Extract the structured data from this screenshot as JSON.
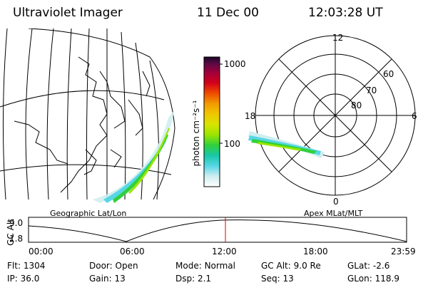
{
  "header": {
    "instrument": "Ultraviolet Imager",
    "date": "11 Dec 00",
    "time": "12:03:28 UT"
  },
  "geo_panel": {
    "caption": "Geographic Lat/Lon"
  },
  "colorbar": {
    "unit_label": "photon cm⁻²s⁻¹",
    "ticks": [
      "1000",
      "100"
    ],
    "ticks_values": [
      1000,
      100
    ],
    "scale": "log",
    "colors": [
      "#ffffff",
      "#cfeef0",
      "#57d6e6",
      "#19c7a8",
      "#2fd13b",
      "#9be500",
      "#d7e500",
      "#f1c700",
      "#f39a00",
      "#ee4b00",
      "#d4001a",
      "#a0003a",
      "#5a0a44",
      "#1a0526"
    ]
  },
  "polar_panel": {
    "caption": "Apex MLat/MLT",
    "mlt_labels": [
      "12",
      "18",
      "6",
      "0"
    ],
    "lat_labels": [
      "60",
      "70",
      "80"
    ]
  },
  "altitude_plot": {
    "ylabel": "GC Alt",
    "yticks": [
      "9.0",
      "1.8"
    ],
    "xticks": [
      "00:00",
      "06:00",
      "12:00",
      "18:00",
      "23:59"
    ],
    "marker_color": "#e00000"
  },
  "status": {
    "row1": [
      {
        "label": "Flt:",
        "value": "1304"
      },
      {
        "label": "Door:",
        "value": "Open"
      },
      {
        "label": "Mode:",
        "value": "Normal"
      },
      {
        "label": "GC Alt:",
        "value": "9.0 Re"
      },
      {
        "label": "GLat:",
        "value": "-2.6"
      }
    ],
    "row2": [
      {
        "label": "IP:",
        "value": "36.0"
      },
      {
        "label": "Gain:",
        "value": "13"
      },
      {
        "label": "Dsp:",
        "value": "2.1"
      },
      {
        "label": "Seq:",
        "value": "13"
      },
      {
        "label": "GLon:",
        "value": "118.9"
      }
    ]
  }
}
